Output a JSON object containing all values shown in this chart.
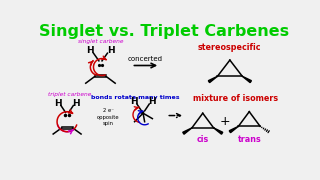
{
  "title": "Singlet vs. Triplet Carbenes",
  "title_color": "#00cc00",
  "title_fontsize": 11.5,
  "bg_color": "#f0f0f0",
  "singlet_label": "singlet carbene",
  "singlet_label_color": "#cc00cc",
  "triplet_label": "triplet carbene",
  "triplet_label_color": "#cc00cc",
  "concerted_text": "concerted",
  "stereospecific_text": "stereospecific",
  "stereospecific_color": "#cc0000",
  "bonds_rotate_text": "bonds rotate many times",
  "bonds_rotate_color": "#0000cc",
  "mixture_text": "mixture of isomers",
  "mixture_color": "#cc0000",
  "two_e_text": "2 e⁻\nopposite\nspin",
  "cis_text": "cis",
  "cis_color": "#cc00cc",
  "trans_text": "trans",
  "trans_color": "#cc00cc",
  "plus_text": "+",
  "red_arrow_color": "#cc0000",
  "blue_arrow_color": "#0000cc",
  "magenta_arrow_color": "#cc00cc"
}
